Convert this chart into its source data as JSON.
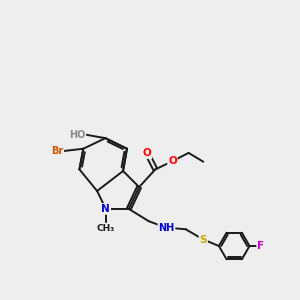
{
  "background_color": "#eeeeee",
  "bond_color": "#1a1a1a",
  "atom_colors": {
    "O": "#ff0000",
    "N": "#0000cc",
    "Br": "#cc5500",
    "F": "#cc00cc",
    "S": "#ccaa00",
    "HO": "#888888",
    "C": "#1a1a1a"
  },
  "figsize": [
    3.0,
    3.0
  ],
  "dpi": 100
}
